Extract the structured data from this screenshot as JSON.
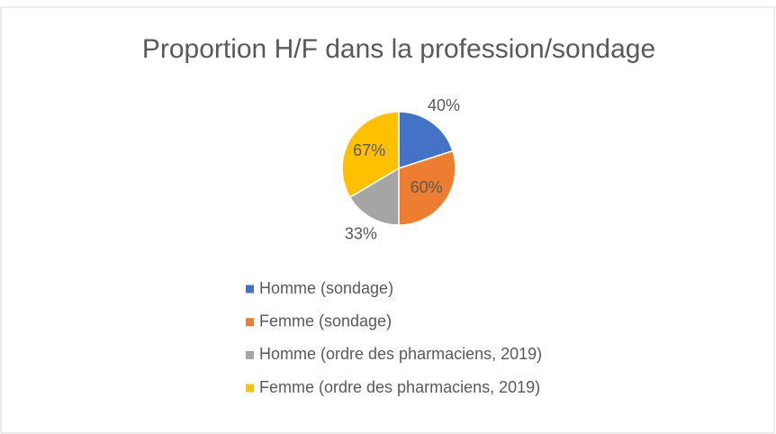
{
  "chart_data": {
    "type": "pie",
    "title": "Proportion H/F dans la profession/sondage",
    "categories": [
      "Homme (sondage)",
      "Femme (sondage)",
      "Homme (ordre des pharmaciens, 2019)",
      "Femme (ordre des pharmaciens, 2019)"
    ],
    "values": [
      40,
      60,
      33,
      67
    ],
    "value_labels": [
      "40%",
      "60%",
      "33%",
      "67%"
    ],
    "colors": [
      "#4472c4",
      "#ed7d31",
      "#a5a5a5",
      "#ffc000"
    ],
    "legend": "bottom"
  }
}
